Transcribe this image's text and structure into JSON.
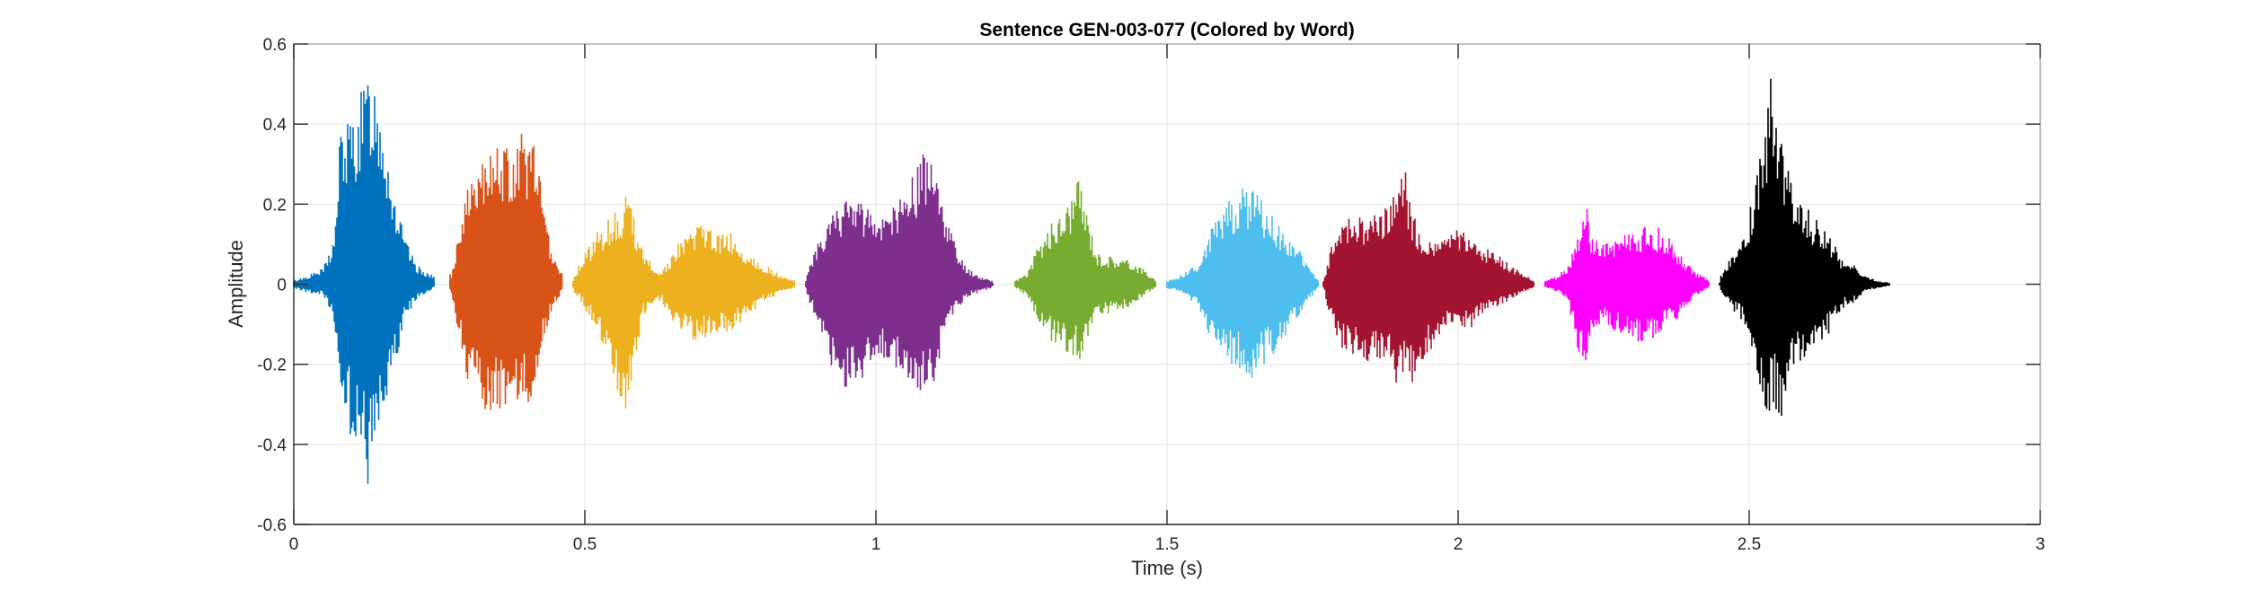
{
  "chart_data": {
    "type": "line",
    "title": "Sentence GEN-003-077 (Colored by Word)",
    "xlabel": "Time (s)",
    "ylabel": "Amplitude",
    "xlim": [
      0,
      3
    ],
    "ylim": [
      -0.6,
      0.6
    ],
    "xticks": [
      0,
      0.5,
      1,
      1.5,
      2,
      2.5,
      3
    ],
    "xtick_labels": [
      "0",
      "0.5",
      "1",
      "1.5",
      "2",
      "2.5",
      "3"
    ],
    "yticks": [
      -0.6,
      -0.4,
      -0.2,
      0,
      0.2,
      0.4,
      0.6
    ],
    "ytick_labels": [
      "-0.6",
      "-0.4",
      "-0.2",
      "0",
      "0.2",
      "0.4",
      "0.6"
    ],
    "grid": true,
    "legend": false,
    "series": [
      {
        "color": "#0072BD",
        "x": [
          0.0,
          0.02,
          0.05,
          0.07,
          0.08,
          0.1,
          0.12,
          0.13,
          0.14,
          0.15,
          0.17,
          0.19,
          0.21,
          0.24
        ],
        "max": [
          0.01,
          0.02,
          0.04,
          0.12,
          0.4,
          0.42,
          0.5,
          0.55,
          0.52,
          0.47,
          0.25,
          0.12,
          0.05,
          0.02
        ],
        "min": [
          -0.01,
          -0.02,
          -0.03,
          -0.1,
          -0.28,
          -0.4,
          -0.48,
          -0.52,
          -0.45,
          -0.38,
          -0.25,
          -0.1,
          -0.04,
          -0.01
        ]
      },
      {
        "color": "#D95319",
        "x": [
          0.27,
          0.28,
          0.3,
          0.32,
          0.34,
          0.36,
          0.38,
          0.4,
          0.41,
          0.42,
          0.44,
          0.46
        ],
        "max": [
          0.02,
          0.1,
          0.25,
          0.3,
          0.33,
          0.36,
          0.37,
          0.38,
          0.38,
          0.3,
          0.1,
          0.03
        ],
        "min": [
          -0.02,
          -0.1,
          -0.25,
          -0.3,
          -0.33,
          -0.32,
          -0.3,
          -0.3,
          -0.28,
          -0.2,
          -0.08,
          -0.02
        ]
      },
      {
        "color": "#EDB120",
        "x": [
          0.48,
          0.5,
          0.53,
          0.56,
          0.57,
          0.58,
          0.6,
          0.63,
          0.66,
          0.69,
          0.72,
          0.75,
          0.78,
          0.81,
          0.84,
          0.86
        ],
        "max": [
          0.02,
          0.08,
          0.15,
          0.2,
          0.22,
          0.2,
          0.08,
          0.03,
          0.1,
          0.15,
          0.14,
          0.13,
          0.08,
          0.05,
          0.02,
          0.01
        ],
        "min": [
          -0.02,
          -0.06,
          -0.15,
          -0.28,
          -0.34,
          -0.25,
          -0.08,
          -0.04,
          -0.12,
          -0.15,
          -0.13,
          -0.12,
          -0.08,
          -0.04,
          -0.02,
          -0.01
        ]
      },
      {
        "color": "#7E2F8E",
        "x": [
          0.88,
          0.9,
          0.92,
          0.95,
          0.98,
          1.0,
          1.02,
          1.05,
          1.07,
          1.09,
          1.1,
          1.12,
          1.14,
          1.16,
          1.18,
          1.2
        ],
        "max": [
          0.02,
          0.1,
          0.18,
          0.23,
          0.2,
          0.16,
          0.18,
          0.25,
          0.3,
          0.35,
          0.3,
          0.2,
          0.08,
          0.04,
          0.02,
          0.01
        ],
        "min": [
          -0.02,
          -0.1,
          -0.2,
          -0.27,
          -0.25,
          -0.18,
          -0.2,
          -0.22,
          -0.27,
          -0.28,
          -0.25,
          -0.12,
          -0.06,
          -0.03,
          -0.02,
          -0.01
        ]
      },
      {
        "color": "#77AC30",
        "x": [
          1.24,
          1.26,
          1.28,
          1.3,
          1.32,
          1.34,
          1.35,
          1.36,
          1.38,
          1.41,
          1.44,
          1.46,
          1.48
        ],
        "max": [
          0.01,
          0.03,
          0.1,
          0.15,
          0.18,
          0.24,
          0.27,
          0.2,
          0.08,
          0.07,
          0.06,
          0.04,
          0.01
        ],
        "min": [
          -0.01,
          -0.03,
          -0.1,
          -0.14,
          -0.17,
          -0.18,
          -0.2,
          -0.15,
          -0.08,
          -0.07,
          -0.06,
          -0.03,
          -0.01
        ]
      },
      {
        "color": "#4DBEEE",
        "x": [
          1.5,
          1.52,
          1.55,
          1.57,
          1.59,
          1.61,
          1.63,
          1.65,
          1.67,
          1.69,
          1.71,
          1.73,
          1.75,
          1.76
        ],
        "max": [
          0.01,
          0.02,
          0.05,
          0.12,
          0.18,
          0.22,
          0.25,
          0.24,
          0.2,
          0.15,
          0.12,
          0.08,
          0.03,
          0.01
        ],
        "min": [
          -0.01,
          -0.02,
          -0.05,
          -0.12,
          -0.18,
          -0.2,
          -0.22,
          -0.24,
          -0.2,
          -0.16,
          -0.12,
          -0.08,
          -0.03,
          -0.01
        ]
      },
      {
        "color": "#A2142F",
        "x": [
          1.77,
          1.79,
          1.82,
          1.85,
          1.88,
          1.9,
          1.91,
          1.92,
          1.94,
          1.96,
          1.98,
          2.0,
          2.02,
          2.04,
          2.06,
          2.08,
          2.1,
          2.13
        ],
        "max": [
          0.02,
          0.15,
          0.17,
          0.18,
          0.2,
          0.26,
          0.28,
          0.2,
          0.12,
          0.1,
          0.13,
          0.15,
          0.12,
          0.08,
          0.1,
          0.06,
          0.04,
          0.01
        ],
        "min": [
          -0.02,
          -0.15,
          -0.18,
          -0.2,
          -0.22,
          -0.26,
          -0.24,
          -0.25,
          -0.2,
          -0.15,
          -0.12,
          -0.1,
          -0.12,
          -0.08,
          -0.06,
          -0.05,
          -0.03,
          -0.01
        ]
      },
      {
        "color": "#FF00FF",
        "x": [
          2.15,
          2.17,
          2.19,
          2.21,
          2.22,
          2.23,
          2.25,
          2.27,
          2.29,
          2.31,
          2.33,
          2.35,
          2.37,
          2.39,
          2.41,
          2.43
        ],
        "max": [
          0.01,
          0.02,
          0.05,
          0.15,
          0.2,
          0.12,
          0.1,
          0.12,
          0.13,
          0.14,
          0.15,
          0.14,
          0.1,
          0.06,
          0.03,
          0.01
        ],
        "min": [
          -0.01,
          -0.02,
          -0.05,
          -0.2,
          -0.2,
          -0.12,
          -0.1,
          -0.12,
          -0.14,
          -0.15,
          -0.14,
          -0.12,
          -0.1,
          -0.06,
          -0.03,
          -0.01
        ]
      },
      {
        "color": "#000000",
        "x": [
          2.45,
          2.47,
          2.49,
          2.51,
          2.53,
          2.54,
          2.55,
          2.56,
          2.57,
          2.58,
          2.6,
          2.62,
          2.64,
          2.66,
          2.68,
          2.7,
          2.72,
          2.74
        ],
        "max": [
          0.02,
          0.08,
          0.12,
          0.25,
          0.45,
          0.55,
          0.4,
          0.35,
          0.28,
          0.2,
          0.2,
          0.15,
          0.12,
          0.06,
          0.05,
          0.02,
          0.01,
          0.005
        ],
        "min": [
          -0.02,
          -0.06,
          -0.1,
          -0.2,
          -0.35,
          -0.3,
          -0.32,
          -0.36,
          -0.25,
          -0.2,
          -0.2,
          -0.15,
          -0.12,
          -0.06,
          -0.05,
          -0.02,
          -0.01,
          -0.005
        ]
      }
    ]
  }
}
